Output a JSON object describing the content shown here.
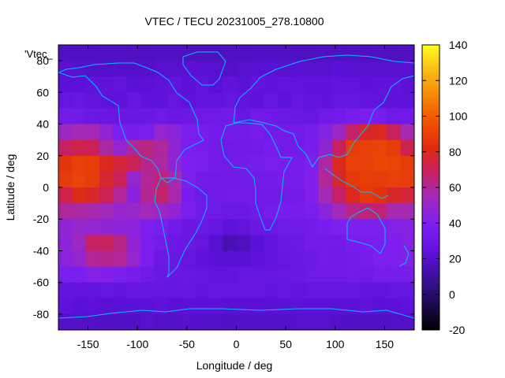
{
  "chart_data": {
    "type": "heatmap",
    "title": "VTEC / TECU 20231005_278.10800",
    "xlabel": "Longitude / deg",
    "ylabel": "Latitude / deg",
    "legend_key": "'Vtec_",
    "xlim": [
      -180,
      180
    ],
    "ylim": [
      -90,
      90
    ],
    "x_ticks": [
      -150,
      -100,
      -50,
      0,
      50,
      100,
      150
    ],
    "y_ticks": [
      -80,
      -60,
      -40,
      -20,
      0,
      20,
      40,
      60,
      80
    ],
    "colorbar": {
      "range": [
        -20,
        140
      ],
      "ticks": [
        -20,
        0,
        20,
        40,
        60,
        80,
        100,
        120,
        140
      ],
      "palette": "black-purple-red-orange-yellow"
    },
    "colors": {
      "coastline": "#00bfff"
    },
    "values": [
      [
        18,
        17,
        17,
        18,
        18,
        17,
        17,
        18,
        18,
        17,
        17,
        17,
        18,
        17,
        18,
        18,
        18,
        17,
        17,
        18,
        17,
        18,
        17,
        18,
        17,
        18
      ],
      [
        21,
        20,
        19,
        19,
        19,
        19,
        19,
        21,
        20,
        22,
        21,
        20,
        19,
        20,
        21,
        22,
        20,
        22,
        20,
        20,
        22,
        21,
        20,
        20,
        20,
        21
      ],
      [
        22,
        23,
        24,
        24,
        26,
        22,
        23,
        24,
        26,
        23,
        25,
        22,
        25,
        23,
        26,
        24,
        26,
        26,
        24,
        24,
        26,
        26,
        23,
        25,
        25,
        23
      ],
      [
        28,
        29,
        26,
        24,
        24,
        27,
        25,
        24,
        27,
        24,
        26,
        26,
        27,
        26,
        24,
        27,
        24,
        27,
        26,
        25,
        28,
        27,
        26,
        26,
        25,
        24
      ],
      [
        34,
        33,
        31,
        30,
        30,
        30,
        30,
        32,
        30,
        31,
        32,
        33,
        34,
        29,
        34,
        32,
        31,
        30,
        29,
        33,
        34,
        37,
        38,
        36,
        32,
        33
      ],
      [
        52,
        55,
        55,
        47,
        39,
        36,
        38,
        48,
        45,
        38,
        37,
        35,
        35,
        34,
        36,
        34,
        35,
        34,
        36,
        43,
        51,
        67,
        78,
        79,
        69,
        56
      ],
      [
        68,
        72,
        70,
        58,
        48,
        60,
        63,
        59,
        47,
        38,
        37,
        34,
        32,
        33,
        34,
        36,
        34,
        35,
        37,
        47,
        69,
        88,
        90,
        91,
        88,
        72
      ],
      [
        86,
        90,
        89,
        80,
        75,
        70,
        62,
        58,
        47,
        39,
        38,
        35,
        34,
        35,
        36,
        38,
        37,
        36,
        40,
        58,
        80,
        90,
        90,
        92,
        91,
        88
      ],
      [
        88,
        91,
        88,
        77,
        70,
        48,
        60,
        65,
        56,
        40,
        34,
        32,
        33,
        34,
        34,
        35,
        36,
        36,
        41,
        60,
        77,
        87,
        89,
        88,
        90,
        89
      ],
      [
        72,
        81,
        78,
        71,
        60,
        44,
        61,
        67,
        57,
        37,
        32,
        33,
        34,
        34,
        34,
        33,
        34,
        35,
        41,
        55,
        68,
        80,
        87,
        84,
        78,
        75
      ],
      [
        59,
        58,
        56,
        54,
        49,
        50,
        54,
        51,
        47,
        38,
        33,
        32,
        31,
        31,
        33,
        36,
        37,
        36,
        38,
        45,
        54,
        63,
        65,
        66,
        56,
        55
      ],
      [
        47,
        49,
        48,
        47,
        46,
        45,
        40,
        38,
        33,
        30,
        31,
        27,
        24,
        26,
        30,
        31,
        33,
        33,
        34,
        37,
        40,
        40,
        40,
        40,
        42,
        43
      ],
      [
        45,
        52,
        68,
        69,
        63,
        47,
        38,
        35,
        31,
        30,
        27,
        20,
        14,
        17,
        22,
        26,
        30,
        31,
        34,
        34,
        34,
        37,
        37,
        38,
        39,
        42
      ],
      [
        45,
        48,
        60,
        61,
        60,
        48,
        38,
        31,
        30,
        27,
        25,
        22,
        21,
        21,
        24,
        26,
        28,
        30,
        31,
        34,
        33,
        35,
        36,
        39,
        40,
        42
      ],
      [
        38,
        38,
        42,
        41,
        38,
        36,
        33,
        30,
        29,
        29,
        27,
        26,
        26,
        27,
        27,
        28,
        29,
        30,
        32,
        32,
        32,
        34,
        33,
        36,
        36,
        36
      ],
      [
        26,
        26,
        26,
        27,
        26,
        28,
        27,
        27,
        27,
        28,
        26,
        28,
        27,
        28,
        28,
        26,
        27,
        26,
        27,
        28,
        27,
        28,
        26,
        26,
        28,
        27
      ],
      [
        24,
        22,
        23,
        21,
        22,
        22,
        23,
        24,
        21,
        23,
        22,
        23,
        21,
        21,
        21,
        22,
        22,
        23,
        22,
        22,
        22,
        23,
        24,
        22,
        23,
        24
      ],
      [
        19,
        19,
        19,
        18,
        18,
        18,
        20,
        19,
        19,
        20,
        19,
        19,
        18,
        19,
        19,
        19,
        19,
        20,
        20,
        20,
        19,
        18,
        18,
        18,
        19,
        19
      ]
    ]
  }
}
